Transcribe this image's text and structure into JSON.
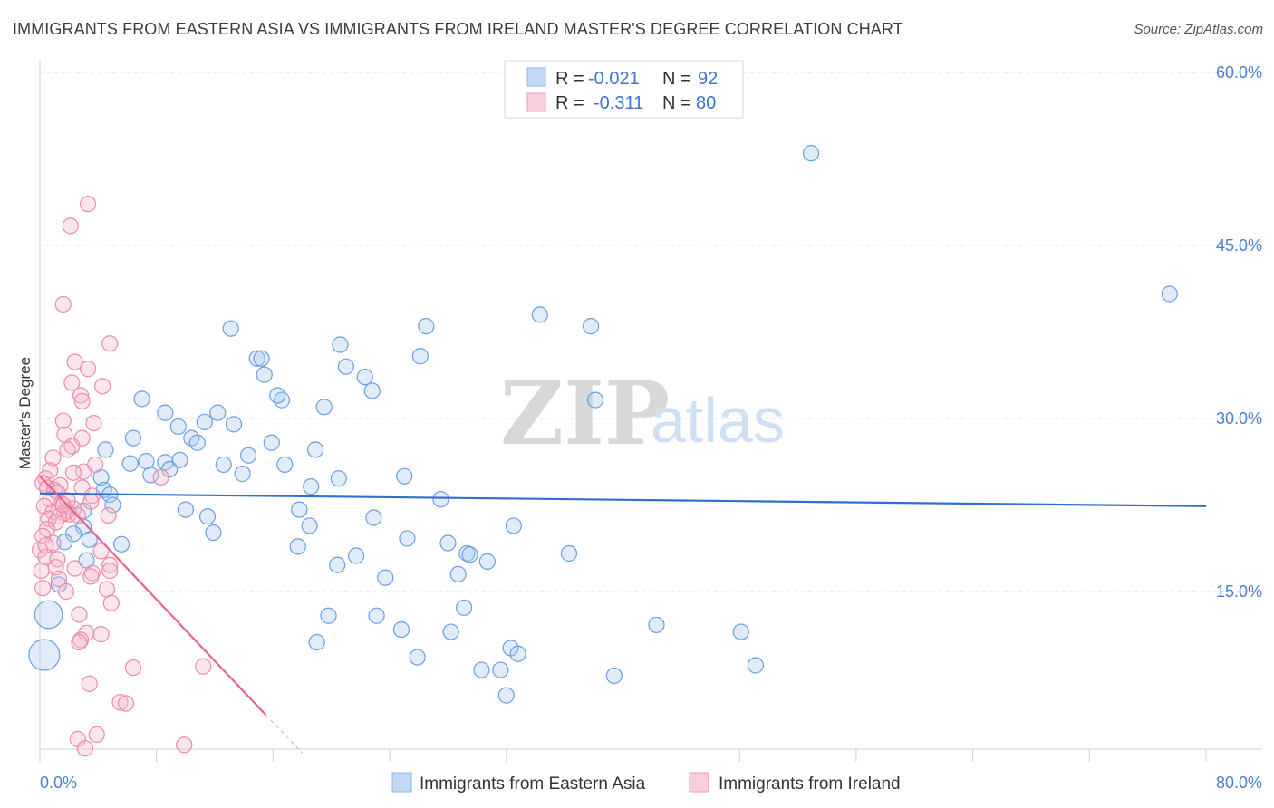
{
  "title": "IMMIGRANTS FROM EASTERN ASIA VS IMMIGRANTS FROM IRELAND MASTER'S DEGREE CORRELATION CHART",
  "source": "Source: ZipAtlas.com",
  "watermark": {
    "zip": "ZIP",
    "atlas": "atlas"
  },
  "legend_top": [
    {
      "r_label": "R =",
      "r_value": "-0.021",
      "n_label": "N =",
      "n_value": "92",
      "color": "#a9c8f0"
    },
    {
      "r_label": "R =",
      "r_value": "-0.311",
      "n_label": "N =",
      "n_value": "80",
      "color": "#f7b8cc"
    }
  ],
  "legend_bottom": [
    {
      "label": "Immigrants from Eastern Asia",
      "color": "#a9c8f0"
    },
    {
      "label": "Immigrants from Ireland",
      "color": "#f7b8cc"
    }
  ],
  "colors": {
    "blue": "#6a9fe0",
    "blue_line": "#2f6fd0",
    "pink": "#ee8aaa",
    "pink_line": "#e8628f",
    "tick": "#4a7fd0"
  },
  "chart_data": {
    "type": "scatter",
    "xlabel": "",
    "ylabel": "Master's Degree",
    "xlim": [
      0,
      80
    ],
    "ylim": [
      0,
      62
    ],
    "x_tick_labels": [
      "0.0%",
      "80.0%"
    ],
    "y_ticks": [
      15,
      30,
      45,
      60
    ],
    "y_tick_labels": [
      "15.0%",
      "30.0%",
      "45.0%",
      "60.0%"
    ],
    "grid": true,
    "series": [
      {
        "name": "Immigrants from Eastern Asia",
        "color": "#6a9fe0",
        "trend": [
          [
            0,
            23.5
          ],
          [
            80,
            22.4
          ]
        ],
        "points": [
          [
            52.9,
            53.0
          ],
          [
            77.5,
            40.8
          ],
          [
            34.3,
            39.0
          ],
          [
            37.8,
            38.0
          ],
          [
            26.5,
            38.0
          ],
          [
            13.1,
            37.8
          ],
          [
            20.6,
            36.4
          ],
          [
            26.1,
            35.4
          ],
          [
            14.9,
            35.2
          ],
          [
            15.2,
            35.2
          ],
          [
            21.0,
            34.5
          ],
          [
            15.4,
            33.8
          ],
          [
            22.3,
            33.6
          ],
          [
            22.8,
            32.4
          ],
          [
            16.6,
            31.6
          ],
          [
            16.3,
            32.0
          ],
          [
            38.1,
            31.6
          ],
          [
            7.0,
            31.7
          ],
          [
            19.5,
            31.0
          ],
          [
            8.6,
            30.5
          ],
          [
            12.2,
            30.5
          ],
          [
            11.3,
            29.7
          ],
          [
            13.3,
            29.5
          ],
          [
            9.5,
            29.3
          ],
          [
            10.4,
            28.3
          ],
          [
            6.4,
            28.3
          ],
          [
            10.8,
            27.9
          ],
          [
            15.9,
            27.9
          ],
          [
            4.5,
            27.3
          ],
          [
            18.9,
            27.3
          ],
          [
            14.3,
            26.8
          ],
          [
            9.6,
            26.4
          ],
          [
            7.3,
            26.3
          ],
          [
            6.2,
            26.1
          ],
          [
            8.6,
            26.2
          ],
          [
            12.6,
            26.0
          ],
          [
            16.8,
            26.0
          ],
          [
            8.9,
            25.6
          ],
          [
            7.6,
            25.1
          ],
          [
            13.9,
            25.2
          ],
          [
            25.0,
            25.0
          ],
          [
            20.5,
            24.8
          ],
          [
            4.2,
            24.9
          ],
          [
            18.6,
            24.1
          ],
          [
            4.4,
            23.8
          ],
          [
            4.8,
            23.4
          ],
          [
            27.5,
            23.0
          ],
          [
            5.0,
            22.5
          ],
          [
            3.0,
            22.0
          ],
          [
            10.0,
            22.1
          ],
          [
            17.8,
            22.1
          ],
          [
            11.5,
            21.5
          ],
          [
            22.9,
            21.4
          ],
          [
            32.5,
            20.7
          ],
          [
            3.0,
            20.6
          ],
          [
            18.5,
            20.7
          ],
          [
            2.3,
            20.0
          ],
          [
            11.9,
            20.1
          ],
          [
            25.2,
            19.6
          ],
          [
            3.4,
            19.5
          ],
          [
            5.6,
            19.1
          ],
          [
            17.7,
            18.9
          ],
          [
            28.0,
            19.2
          ],
          [
            1.7,
            19.3
          ],
          [
            29.3,
            18.3
          ],
          [
            29.5,
            18.2
          ],
          [
            36.3,
            18.3
          ],
          [
            21.7,
            18.1
          ],
          [
            30.7,
            17.6
          ],
          [
            20.4,
            17.3
          ],
          [
            3.2,
            17.7
          ],
          [
            28.7,
            16.5
          ],
          [
            23.7,
            16.2
          ],
          [
            1.3,
            15.6
          ],
          [
            29.1,
            13.6
          ],
          [
            19.8,
            12.9
          ],
          [
            23.1,
            12.9
          ],
          [
            42.3,
            12.1
          ],
          [
            24.8,
            11.7
          ],
          [
            28.2,
            11.5
          ],
          [
            48.1,
            11.5
          ],
          [
            19.0,
            10.6
          ],
          [
            32.3,
            10.1
          ],
          [
            32.8,
            9.6
          ],
          [
            25.9,
            9.3
          ],
          [
            39.4,
            7.7
          ],
          [
            30.3,
            8.2
          ],
          [
            31.6,
            8.2
          ],
          [
            49.1,
            8.6
          ],
          [
            32.0,
            6.0
          ],
          [
            0.6,
            13.0
          ],
          [
            0.3,
            9.5
          ]
        ],
        "sizes": [
          1,
          1,
          1,
          1,
          1,
          1,
          1,
          1,
          1,
          1,
          1,
          1,
          1,
          1,
          1,
          1,
          1,
          1,
          1,
          1,
          1,
          1,
          1,
          1,
          1,
          1,
          1,
          1,
          1,
          1,
          1,
          1,
          1,
          1,
          1,
          1,
          1,
          1,
          1,
          1,
          1,
          1,
          1,
          1,
          1,
          1,
          1,
          1,
          1,
          1,
          1,
          1,
          1,
          1,
          1,
          1,
          1,
          1,
          1,
          1,
          1,
          1,
          1,
          1,
          1,
          1,
          1,
          1,
          1,
          1,
          1,
          1,
          1,
          1,
          1,
          1,
          1,
          1,
          1,
          1,
          1,
          1,
          1,
          1,
          1,
          1,
          1,
          1,
          1,
          1,
          1.8,
          2.0
        ]
      },
      {
        "name": "Immigrants from Ireland",
        "color": "#ee8aaa",
        "trend": [
          [
            0,
            25.0
          ],
          [
            15.5,
            4.3
          ]
        ],
        "trend_dashed": [
          [
            15.5,
            4.3
          ],
          [
            18.0,
            1.0
          ]
        ],
        "points": [
          [
            3.3,
            48.6
          ],
          [
            2.1,
            46.7
          ],
          [
            1.6,
            39.9
          ],
          [
            4.8,
            36.5
          ],
          [
            2.4,
            34.9
          ],
          [
            3.3,
            34.3
          ],
          [
            2.2,
            33.1
          ],
          [
            4.3,
            32.8
          ],
          [
            2.8,
            32.0
          ],
          [
            2.9,
            31.5
          ],
          [
            1.6,
            29.8
          ],
          [
            3.7,
            29.6
          ],
          [
            2.9,
            28.3
          ],
          [
            1.7,
            28.6
          ],
          [
            2.2,
            27.6
          ],
          [
            1.9,
            27.3
          ],
          [
            0.9,
            26.6
          ],
          [
            3.8,
            26.0
          ],
          [
            3.0,
            25.4
          ],
          [
            2.3,
            25.3
          ],
          [
            8.3,
            24.9
          ],
          [
            0.4,
            24.8
          ],
          [
            0.2,
            24.4
          ],
          [
            1.4,
            24.2
          ],
          [
            0.5,
            24.0
          ],
          [
            2.9,
            24.0
          ],
          [
            1.0,
            23.8
          ],
          [
            1.2,
            23.6
          ],
          [
            3.6,
            23.3
          ],
          [
            0.7,
            23.0
          ],
          [
            1.5,
            22.6
          ],
          [
            0.3,
            22.4
          ],
          [
            3.5,
            22.8
          ],
          [
            2.3,
            22.2
          ],
          [
            1.9,
            22.0
          ],
          [
            0.9,
            21.9
          ],
          [
            1.7,
            21.8
          ],
          [
            2.0,
            21.7
          ],
          [
            4.7,
            21.6
          ],
          [
            1.3,
            21.5
          ],
          [
            0.6,
            21.3
          ],
          [
            1.1,
            21.0
          ],
          [
            0.5,
            20.4
          ],
          [
            0.2,
            19.8
          ],
          [
            0.9,
            19.2
          ],
          [
            0.0,
            18.6
          ],
          [
            0.4,
            18.0
          ],
          [
            4.2,
            18.5
          ],
          [
            1.2,
            17.8
          ],
          [
            4.8,
            17.3
          ],
          [
            1.1,
            17.1
          ],
          [
            2.4,
            17.0
          ],
          [
            4.8,
            16.8
          ],
          [
            3.6,
            16.6
          ],
          [
            3.5,
            16.3
          ],
          [
            1.3,
            16.1
          ],
          [
            0.2,
            15.3
          ],
          [
            1.8,
            15.0
          ],
          [
            4.6,
            15.2
          ],
          [
            4.9,
            14.0
          ],
          [
            2.7,
            13.0
          ],
          [
            3.2,
            11.4
          ],
          [
            4.2,
            11.3
          ],
          [
            2.8,
            10.8
          ],
          [
            2.7,
            10.6
          ],
          [
            6.4,
            8.4
          ],
          [
            11.2,
            8.5
          ],
          [
            3.4,
            7.0
          ],
          [
            5.5,
            5.4
          ],
          [
            5.9,
            5.3
          ],
          [
            2.6,
            2.2
          ],
          [
            3.9,
            2.6
          ],
          [
            3.1,
            1.4
          ],
          [
            9.9,
            1.7
          ],
          [
            0.4,
            19.0
          ],
          [
            0.1,
            16.8
          ],
          [
            1.6,
            22.5
          ],
          [
            2.6,
            21.6
          ],
          [
            0.7,
            25.5
          ],
          [
            1.9,
            22.9
          ]
        ]
      }
    ]
  }
}
